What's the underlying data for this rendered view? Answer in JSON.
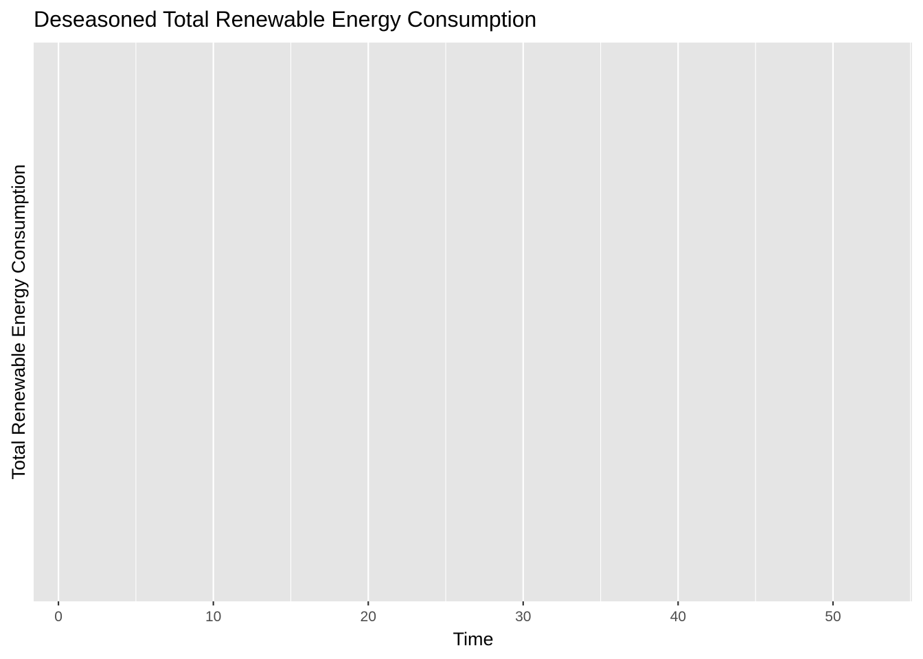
{
  "chart_data": {
    "type": "line",
    "title": "Deseasoned Total Renewable Energy Consumption",
    "xlabel": "Time",
    "ylabel": "Total Renewable Energy Consumption",
    "xlim": [
      -1.6,
      55.1
    ],
    "x_ticks": [
      0,
      10,
      20,
      30,
      40,
      50
    ],
    "x_minor_ticks": [
      5,
      15,
      25,
      35,
      45,
      55
    ],
    "y_ticks": [],
    "grid": true,
    "series": []
  },
  "colors": {
    "panel_background": "#e5e5e5",
    "grid_line": "#ffffff",
    "tick_label": "#4d4d4d",
    "tick_mark": "#333333",
    "text": "#000000"
  }
}
